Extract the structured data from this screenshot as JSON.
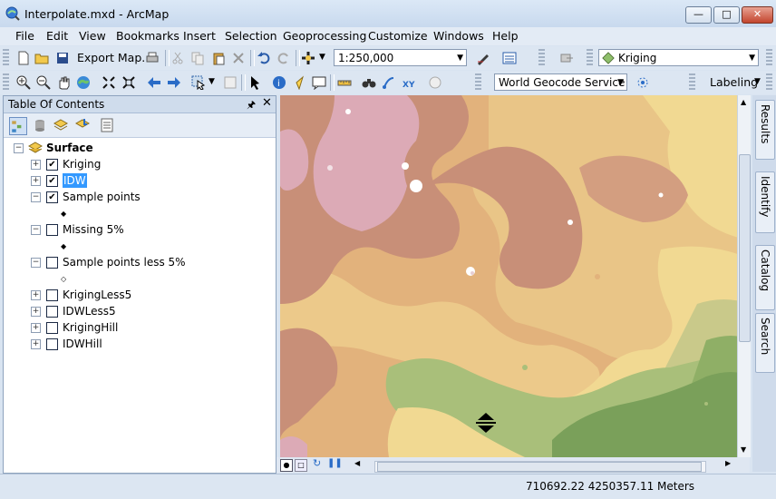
{
  "window": {
    "title": "Interpolate.mxd - ArcMap"
  },
  "menu": [
    "File",
    "Edit",
    "View",
    "Bookmarks",
    "Insert",
    "Selection",
    "Geoprocessing",
    "Customize",
    "Windows",
    "Help"
  ],
  "toolbar": {
    "export_map_label": "Export Map...",
    "scale_value": "1:250,000",
    "layer_combo_value": "Kriging",
    "geocode_combo_value": "World Geocode Service (A",
    "labeling_label": "Labeling"
  },
  "toc": {
    "title": "Table Of Contents",
    "group": "Surface",
    "layers": [
      {
        "name": "Kriging",
        "checked": true,
        "expanded": false
      },
      {
        "name": "IDW",
        "checked": true,
        "expanded": false,
        "selected": true
      },
      {
        "name": "Sample points",
        "checked": true,
        "expanded": true,
        "symbol": "◆"
      },
      {
        "name": "Missing 5%",
        "checked": false,
        "expanded": true,
        "symbol": "◆"
      },
      {
        "name": "Sample points less 5%",
        "checked": false,
        "expanded": true,
        "symbol": "◇"
      },
      {
        "name": "KrigingLess5",
        "checked": false,
        "expanded": false
      },
      {
        "name": "IDWLess5",
        "checked": false,
        "expanded": false
      },
      {
        "name": "KrigingHill",
        "checked": false,
        "expanded": false
      },
      {
        "name": "IDWHill",
        "checked": false,
        "expanded": false
      }
    ]
  },
  "dock_tabs": [
    "Results",
    "Identify",
    "Catalog",
    "Search"
  ],
  "status": {
    "coordinates": "710692.22  4250357.11 Meters"
  },
  "colors": {
    "map_pink": "#dcaab6",
    "map_brown": "#c88f78",
    "map_tan": "#e2b27c",
    "map_yellow": "#f1d992",
    "map_green": "#a9bf7a",
    "map_dark_green": "#7aa05a"
  }
}
